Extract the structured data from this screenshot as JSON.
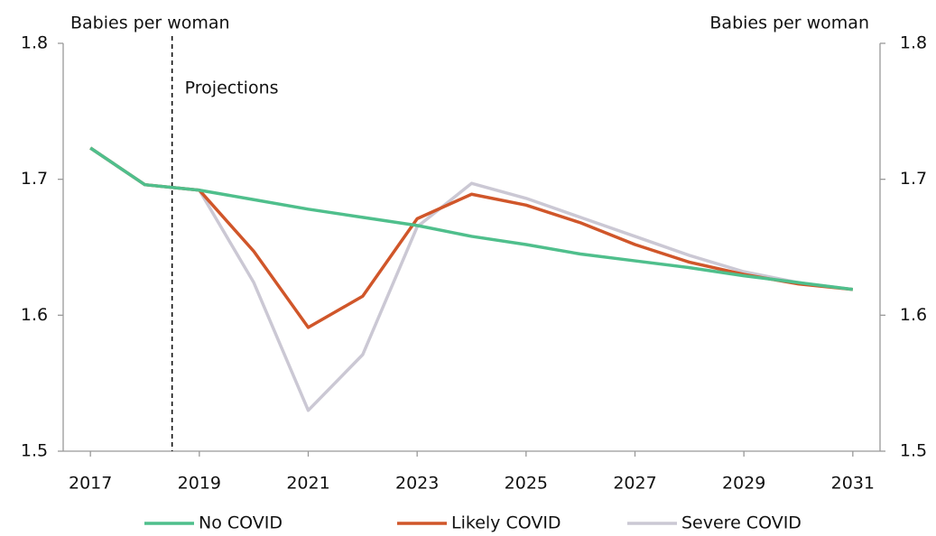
{
  "chart_data": {
    "type": "line",
    "y_label": "Babies per woman",
    "y2_label": "Babies per woman",
    "annotation": {
      "label": "Projections",
      "x": 2018.5
    },
    "x": [
      2017,
      2018,
      2019,
      2020,
      2021,
      2022,
      2023,
      2024,
      2025,
      2026,
      2027,
      2028,
      2029,
      2030,
      2031
    ],
    "series": [
      {
        "name": "Severe COVID",
        "color": "#cbc8d4",
        "values": [
          1.723,
          1.696,
          1.692,
          1.624,
          1.53,
          1.571,
          1.665,
          1.697,
          1.686,
          1.672,
          1.658,
          1.644,
          1.632,
          1.624,
          1.619
        ]
      },
      {
        "name": "Likely COVID",
        "color": "#d0562a",
        "values": [
          1.723,
          1.696,
          1.692,
          1.647,
          1.591,
          1.614,
          1.671,
          1.689,
          1.681,
          1.668,
          1.652,
          1.639,
          1.63,
          1.623,
          1.619
        ]
      },
      {
        "name": "No COVID",
        "color": "#4fbf8c",
        "values": [
          1.723,
          1.696,
          1.692,
          1.685,
          1.678,
          1.672,
          1.666,
          1.658,
          1.652,
          1.645,
          1.64,
          1.635,
          1.629,
          1.624,
          1.619
        ]
      }
    ],
    "legend_order": [
      "No COVID",
      "Likely COVID",
      "Severe COVID"
    ],
    "xlim": [
      2016.5,
      2031.5
    ],
    "xticks": [
      2017,
      2019,
      2021,
      2023,
      2025,
      2027,
      2029,
      2031
    ],
    "ylim": [
      1.5,
      1.8
    ],
    "yticks": [
      1.5,
      1.6,
      1.7,
      1.8
    ],
    "y2lim": [
      1.5,
      1.8
    ],
    "y2ticks": [
      1.5,
      1.6,
      1.7,
      1.8
    ],
    "grid": false
  }
}
